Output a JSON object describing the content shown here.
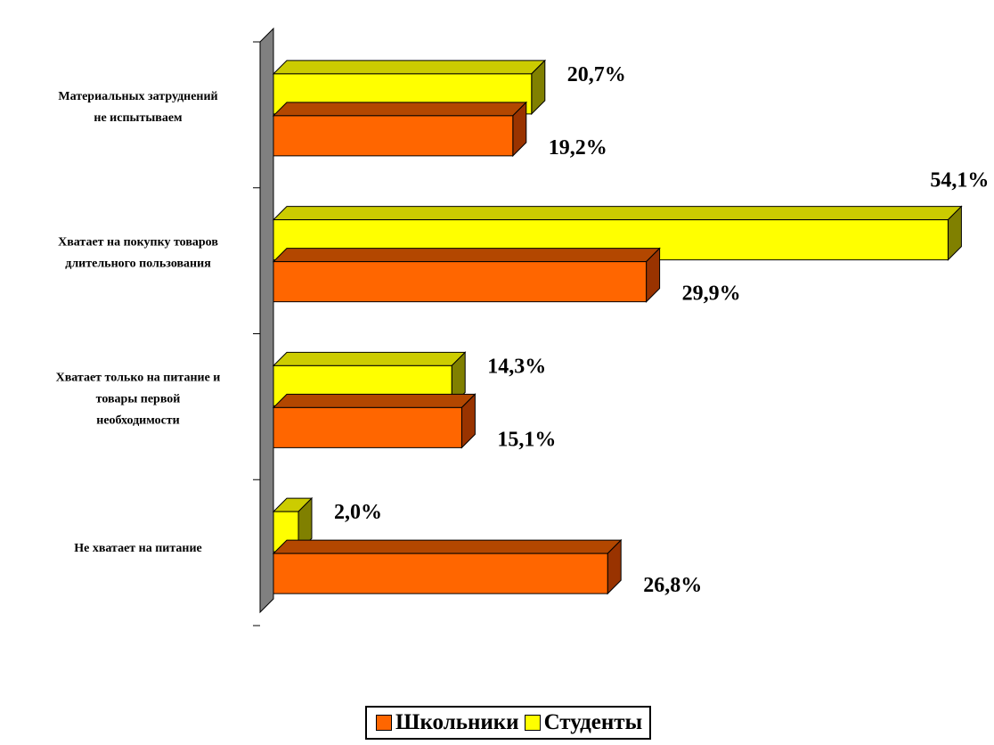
{
  "chart_data": {
    "type": "bar",
    "orientation": "horizontal",
    "style": "3d",
    "categories": [
      [
        "Материальных затруднений",
        "не испытываем"
      ],
      [
        "Хватает на покупку товаров",
        "длительного пользования"
      ],
      [
        "Хватает только на питание и",
        "товары первой",
        "необходимости"
      ],
      [
        "Не хватает на питание"
      ]
    ],
    "series": [
      {
        "name": "Студенты",
        "color": "#ffff00",
        "side_color": "#808000",
        "top_color": "#cccc00",
        "values": [
          20.7,
          54.1,
          14.3,
          2.0
        ],
        "labels": [
          "20,7%",
          "54,1%",
          "14,3%",
          "2,0%"
        ]
      },
      {
        "name": "Школьники",
        "color": "#ff6600",
        "side_color": "#993300",
        "top_color": "#b34700",
        "values": [
          19.2,
          29.9,
          15.1,
          26.8
        ],
        "labels": [
          "19,2%",
          "29,9%",
          "15,1%",
          "26,8%"
        ]
      }
    ],
    "xlim": [
      0,
      55
    ],
    "legend_position": "bottom"
  },
  "legend": {
    "items": [
      {
        "name": "Школьники",
        "color": "#ff6600"
      },
      {
        "name": "Студенты",
        "color": "#ffff00"
      }
    ]
  }
}
